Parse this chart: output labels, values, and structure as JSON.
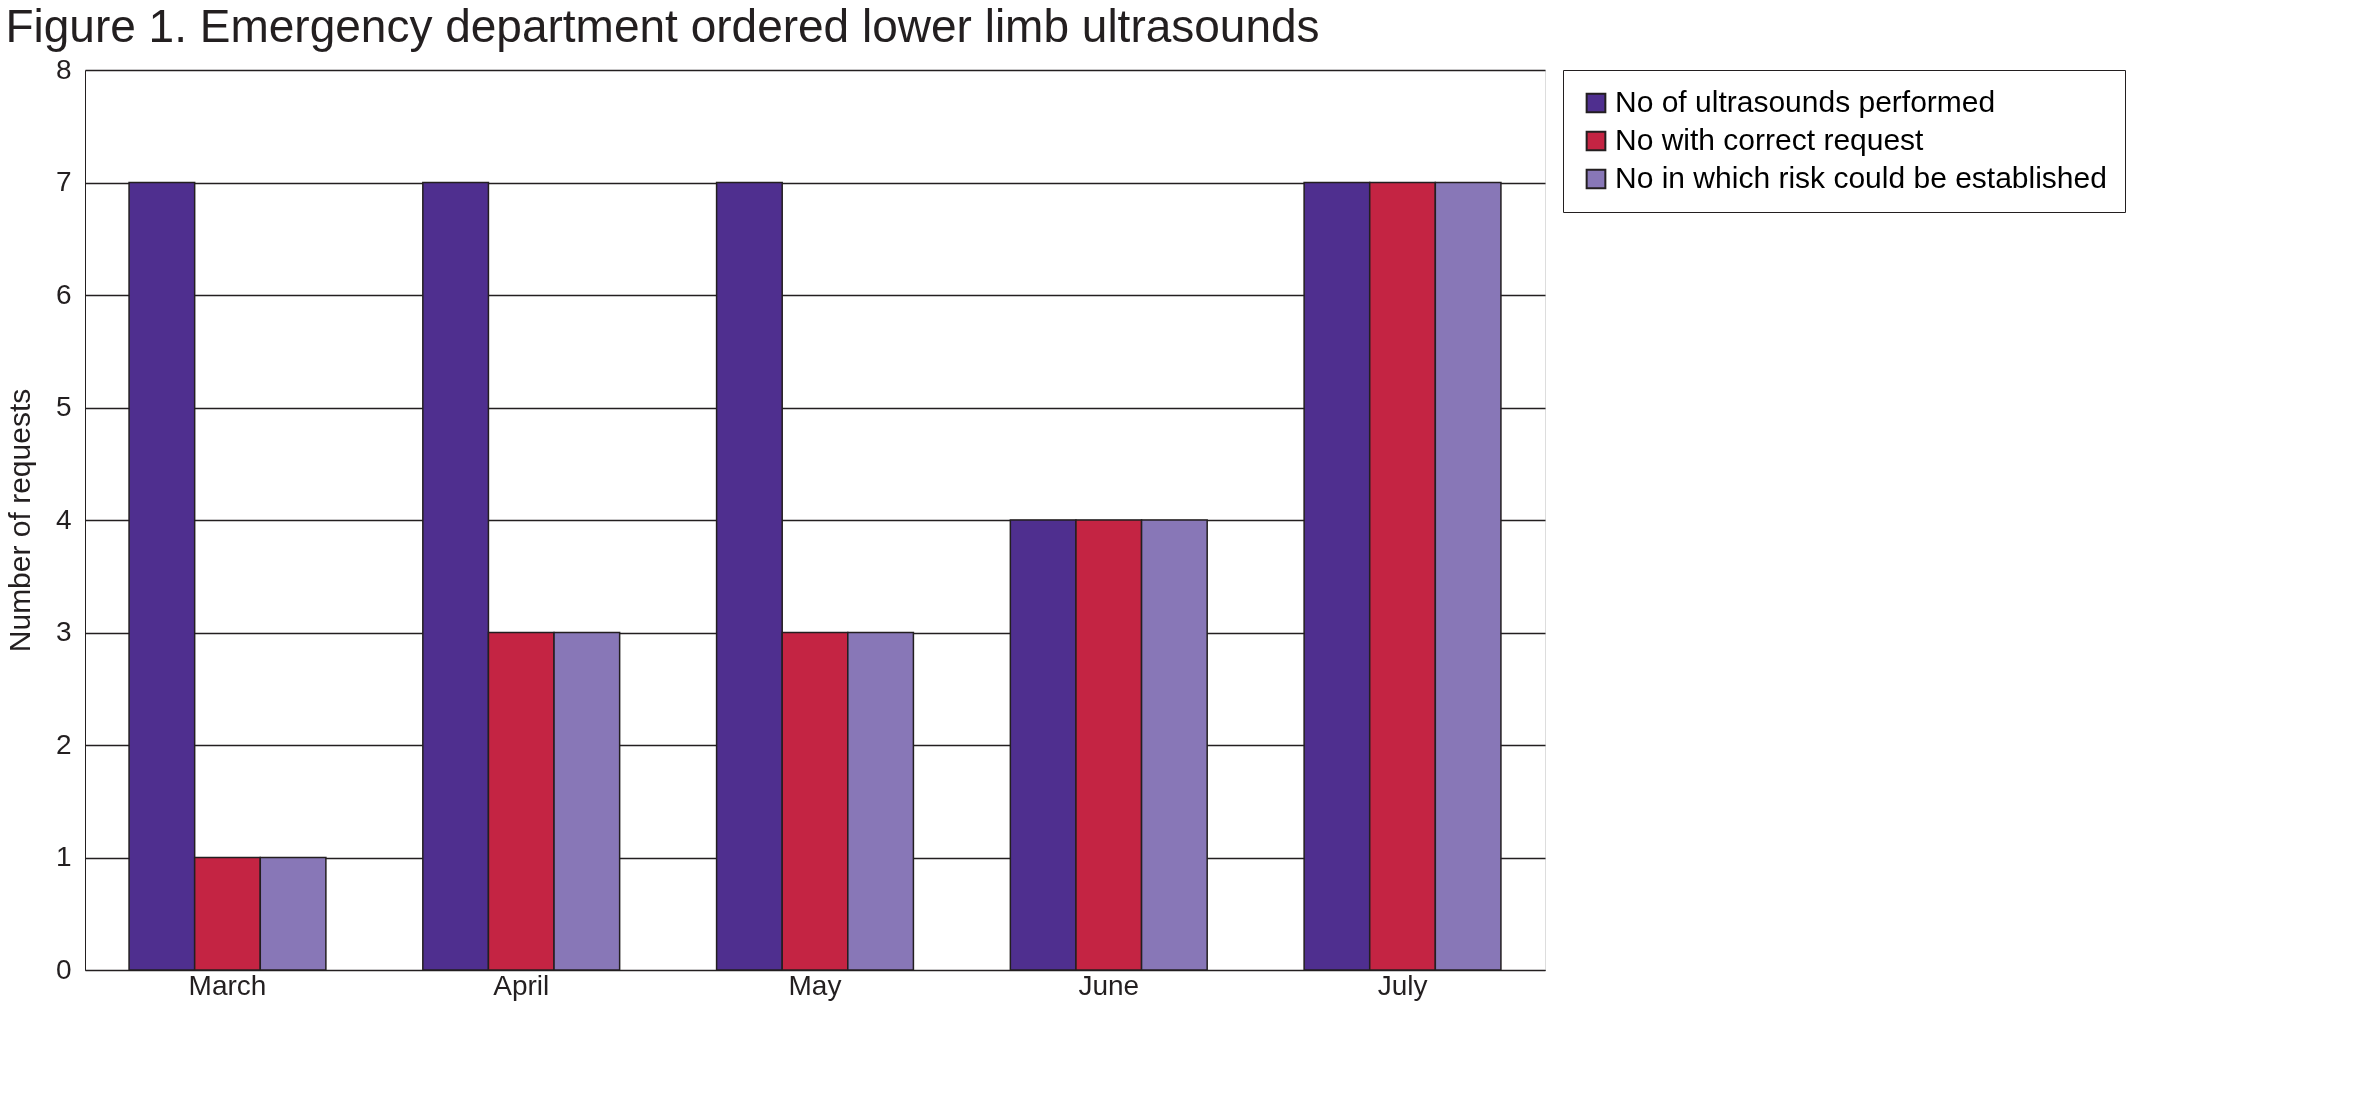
{
  "chart_data": {
    "type": "bar",
    "title": "Figure 1. Emergency department ordered lower limb ultrasounds",
    "ylabel": "Number of requests",
    "categories": [
      "March",
      "April",
      "May",
      "June",
      "July"
    ],
    "series": [
      {
        "name": "No of ultrasounds performed",
        "color": "#4f2f8f",
        "values": [
          7,
          7,
          7,
          4,
          7
        ]
      },
      {
        "name": "No with correct request",
        "color": "#c42443",
        "values": [
          1,
          3,
          3,
          4,
          7
        ]
      },
      {
        "name": "No in which risk could be established",
        "color": "#8877b7",
        "values": [
          1,
          3,
          3,
          4,
          7
        ]
      }
    ],
    "ylim": [
      0,
      8
    ],
    "yticks": [
      0,
      1,
      2,
      3,
      4,
      5,
      6,
      7,
      8
    ],
    "grid": "y",
    "legend": "right"
  }
}
